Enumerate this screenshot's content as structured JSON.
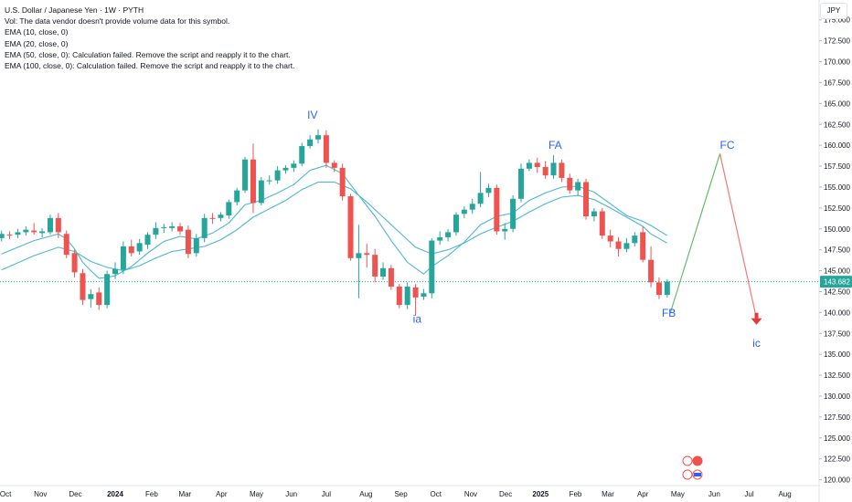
{
  "legend": {
    "title": "U.S. Dollar / Japanese Yen · 1W · PYTH",
    "vol": "Vol: The data vendor doesn't provide volume data for this symbol.",
    "ema10": "EMA (10, close, 0)",
    "ema20": "EMA (20, close, 0)",
    "ema50": "EMA (50, close, 0): Calculation failed. Remove the script and reapply it to the chart.",
    "ema100": "EMA (100, close, 0): Calculation failed. Remove the script and reapply it to the chart."
  },
  "currency": "JPY",
  "colors": {
    "up": "#26a69a",
    "down": "#ef5350",
    "ema": "#4db6d6",
    "label": "#2962ff",
    "projection": "#f07a7a",
    "proj_up": "#66bb6a",
    "price_line": "#26a69a"
  },
  "chart_data": {
    "type": "candlestick",
    "y_ticks": [
      "175.000",
      "172.500",
      "170.000",
      "167.500",
      "165.000",
      "162.500",
      "160.000",
      "157.500",
      "155.000",
      "152.500",
      "150.000",
      "147.500",
      "145.000",
      "142.500",
      "140.000",
      "137.500",
      "135.000",
      "132.500",
      "130.000",
      "127.500",
      "125.000",
      "122.500",
      "120.000"
    ],
    "ylim": [
      119.3,
      176.5
    ],
    "x_ticks": [
      {
        "label": "Oct",
        "week": -13.5,
        "bold": false
      },
      {
        "label": "Nov",
        "week": -9.2,
        "bold": false
      },
      {
        "label": "Dec",
        "week": -4.9,
        "bold": false
      },
      {
        "label": "2024",
        "week": 0,
        "bold": true
      },
      {
        "label": "Feb",
        "week": 4.5,
        "bold": false
      },
      {
        "label": "Mar",
        "week": 8.6,
        "bold": false
      },
      {
        "label": "Apr",
        "week": 13.1,
        "bold": false
      },
      {
        "label": "May",
        "week": 17.4,
        "bold": false
      },
      {
        "label": "Jun",
        "week": 21.7,
        "bold": false
      },
      {
        "label": "Jul",
        "week": 26.0,
        "bold": false
      },
      {
        "label": "Aug",
        "week": 30.9,
        "bold": false
      },
      {
        "label": "Sep",
        "week": 35.2,
        "bold": false
      },
      {
        "label": "Oct",
        "week": 39.5,
        "bold": false
      },
      {
        "label": "Nov",
        "week": 43.8,
        "bold": false
      },
      {
        "label": "Dec",
        "week": 48.1,
        "bold": false
      },
      {
        "label": "2025",
        "week": 52.4,
        "bold": true
      },
      {
        "label": "Feb",
        "week": 56.7,
        "bold": false
      },
      {
        "label": "Mar",
        "week": 60.7,
        "bold": false
      },
      {
        "label": "Apr",
        "week": 65.0,
        "bold": false
      },
      {
        "label": "May",
        "week": 69.3,
        "bold": false
      },
      {
        "label": "Jun",
        "week": 73.8,
        "bold": false
      },
      {
        "label": "Jul",
        "week": 78.1,
        "bold": false
      },
      {
        "label": "Aug",
        "week": 82.5,
        "bold": false
      }
    ],
    "candles": [
      {
        "w": -14,
        "o": 148.9,
        "c": 149.4,
        "h": 149.8,
        "l": 148.5
      },
      {
        "w": -13,
        "o": 149.3,
        "c": 149.2,
        "h": 149.7,
        "l": 148.8
      },
      {
        "w": -12,
        "o": 149.3,
        "c": 149.6,
        "h": 150.0,
        "l": 148.9
      },
      {
        "w": -11,
        "o": 149.6,
        "c": 149.9,
        "h": 150.3,
        "l": 149.2
      },
      {
        "w": -10,
        "o": 149.8,
        "c": 149.6,
        "h": 150.7,
        "l": 149.3
      },
      {
        "w": -9,
        "o": 149.5,
        "c": 149.7,
        "h": 150.1,
        "l": 149.0
      },
      {
        "w": -8,
        "o": 149.6,
        "c": 151.3,
        "h": 151.7,
        "l": 149.3
      },
      {
        "w": -7,
        "o": 151.3,
        "c": 149.6,
        "h": 151.9,
        "l": 148.9
      },
      {
        "w": -6,
        "o": 149.4,
        "c": 146.9,
        "h": 149.8,
        "l": 146.5
      },
      {
        "w": -5,
        "o": 147.1,
        "c": 144.8,
        "h": 147.5,
        "l": 144.2
      },
      {
        "w": -4,
        "o": 144.7,
        "c": 141.5,
        "h": 145.2,
        "l": 140.9
      },
      {
        "w": -3,
        "o": 141.6,
        "c": 142.2,
        "h": 142.8,
        "l": 140.6
      },
      {
        "w": -2,
        "o": 142.4,
        "c": 140.9,
        "h": 143.0,
        "l": 140.3
      },
      {
        "w": -1,
        "o": 140.9,
        "c": 144.6,
        "h": 145.0,
        "l": 140.5
      },
      {
        "w": 0,
        "o": 144.6,
        "c": 145.2,
        "h": 146.0,
        "l": 144.0
      },
      {
        "w": 1,
        "o": 145.1,
        "c": 147.9,
        "h": 148.5,
        "l": 144.6
      },
      {
        "w": 2,
        "o": 147.9,
        "c": 147.1,
        "h": 148.7,
        "l": 146.7
      },
      {
        "w": 3,
        "o": 147.3,
        "c": 148.3,
        "h": 148.8,
        "l": 146.9
      },
      {
        "w": 4,
        "o": 148.1,
        "c": 149.3,
        "h": 149.6,
        "l": 147.6
      },
      {
        "w": 5,
        "o": 149.3,
        "c": 150.1,
        "h": 150.8,
        "l": 148.8
      },
      {
        "w": 6,
        "o": 150.1,
        "c": 150.2,
        "h": 150.6,
        "l": 149.5
      },
      {
        "w": 7,
        "o": 150.1,
        "c": 150.3,
        "h": 150.8,
        "l": 149.7
      },
      {
        "w": 8,
        "o": 150.3,
        "c": 149.7,
        "h": 150.7,
        "l": 149.3
      },
      {
        "w": 9,
        "o": 149.9,
        "c": 147.0,
        "h": 150.4,
        "l": 146.5
      },
      {
        "w": 10,
        "o": 147.1,
        "c": 148.9,
        "h": 149.4,
        "l": 146.7
      },
      {
        "w": 11,
        "o": 148.9,
        "c": 151.3,
        "h": 151.8,
        "l": 148.4
      },
      {
        "w": 12,
        "o": 151.3,
        "c": 151.2,
        "h": 151.9,
        "l": 150.6
      },
      {
        "w": 13,
        "o": 151.3,
        "c": 151.7,
        "h": 152.0,
        "l": 150.9
      },
      {
        "w": 14,
        "o": 151.6,
        "c": 153.2,
        "h": 153.5,
        "l": 151.2
      },
      {
        "w": 15,
        "o": 153.2,
        "c": 154.6,
        "h": 154.9,
        "l": 152.8
      },
      {
        "w": 16,
        "o": 154.6,
        "c": 158.3,
        "h": 158.6,
        "l": 154.3
      },
      {
        "w": 17,
        "o": 158.3,
        "c": 153.1,
        "h": 160.2,
        "l": 151.9
      },
      {
        "w": 18,
        "o": 153.1,
        "c": 155.8,
        "h": 156.2,
        "l": 152.8
      },
      {
        "w": 19,
        "o": 155.8,
        "c": 155.8,
        "h": 156.4,
        "l": 155.3
      },
      {
        "w": 20,
        "o": 155.8,
        "c": 157.0,
        "h": 157.5,
        "l": 155.4
      },
      {
        "w": 21,
        "o": 157.0,
        "c": 157.3,
        "h": 157.6,
        "l": 156.6
      },
      {
        "w": 22,
        "o": 157.3,
        "c": 157.8,
        "h": 158.2,
        "l": 156.8
      },
      {
        "w": 23,
        "o": 157.8,
        "c": 159.9,
        "h": 160.3,
        "l": 157.5
      },
      {
        "w": 24,
        "o": 159.9,
        "c": 160.7,
        "h": 161.2,
        "l": 159.6
      },
      {
        "w": 25,
        "o": 160.7,
        "c": 161.2,
        "h": 161.9,
        "l": 160.2
      },
      {
        "w": 26,
        "o": 161.2,
        "c": 157.9,
        "h": 161.8,
        "l": 157.3
      },
      {
        "w": 27,
        "o": 157.9,
        "c": 157.3,
        "h": 158.2,
        "l": 156.8
      },
      {
        "w": 28,
        "o": 157.3,
        "c": 153.9,
        "h": 157.8,
        "l": 153.4
      },
      {
        "w": 29,
        "o": 153.9,
        "c": 146.5,
        "h": 154.2,
        "l": 146.2
      },
      {
        "w": 30,
        "o": 146.5,
        "c": 147.1,
        "h": 150.5,
        "l": 141.7
      },
      {
        "w": 31,
        "o": 147.1,
        "c": 146.9,
        "h": 148.2,
        "l": 145.4
      },
      {
        "w": 32,
        "o": 146.9,
        "c": 144.3,
        "h": 147.6,
        "l": 143.6
      },
      {
        "w": 33,
        "o": 144.3,
        "c": 145.3,
        "h": 146.0,
        "l": 143.9
      },
      {
        "w": 34,
        "o": 145.3,
        "c": 143.1,
        "h": 145.7,
        "l": 142.7
      },
      {
        "w": 35,
        "o": 143.1,
        "c": 140.9,
        "h": 143.4,
        "l": 140.5
      },
      {
        "w": 36,
        "o": 140.9,
        "c": 143.1,
        "h": 143.6,
        "l": 140.4
      },
      {
        "w": 37,
        "o": 143.0,
        "c": 141.8,
        "h": 143.4,
        "l": 139.6
      },
      {
        "w": 38,
        "o": 141.9,
        "c": 142.3,
        "h": 142.8,
        "l": 141.5
      },
      {
        "w": 39,
        "o": 142.3,
        "c": 148.6,
        "h": 148.9,
        "l": 141.7
      },
      {
        "w": 40,
        "o": 148.6,
        "c": 149.0,
        "h": 149.7,
        "l": 148.1
      },
      {
        "w": 41,
        "o": 149.0,
        "c": 149.6,
        "h": 150.0,
        "l": 148.5
      },
      {
        "w": 42,
        "o": 149.6,
        "c": 151.7,
        "h": 152.0,
        "l": 149.2
      },
      {
        "w": 43,
        "o": 151.8,
        "c": 152.3,
        "h": 152.7,
        "l": 151.3
      },
      {
        "w": 44,
        "o": 152.3,
        "c": 153.0,
        "h": 153.6,
        "l": 151.8
      },
      {
        "w": 45,
        "o": 153.0,
        "c": 154.3,
        "h": 156.8,
        "l": 152.6
      },
      {
        "w": 46,
        "o": 154.3,
        "c": 154.9,
        "h": 155.4,
        "l": 153.8
      },
      {
        "w": 47,
        "o": 154.9,
        "c": 149.7,
        "h": 155.3,
        "l": 149.3
      },
      {
        "w": 48,
        "o": 149.7,
        "c": 150.0,
        "h": 150.7,
        "l": 148.7
      },
      {
        "w": 49,
        "o": 150.0,
        "c": 153.6,
        "h": 154.0,
        "l": 149.6
      },
      {
        "w": 50,
        "o": 153.6,
        "c": 157.2,
        "h": 157.8,
        "l": 153.2
      },
      {
        "w": 51,
        "o": 157.2,
        "c": 157.9,
        "h": 158.3,
        "l": 156.9
      },
      {
        "w": 52,
        "o": 157.9,
        "c": 157.4,
        "h": 158.5,
        "l": 156.7
      },
      {
        "w": 53,
        "o": 157.4,
        "c": 156.4,
        "h": 158.1,
        "l": 156.0
      },
      {
        "w": 54,
        "o": 156.4,
        "c": 157.9,
        "h": 158.8,
        "l": 156.0
      },
      {
        "w": 55,
        "o": 157.9,
        "c": 156.1,
        "h": 158.3,
        "l": 155.6
      },
      {
        "w": 56,
        "o": 156.1,
        "c": 154.6,
        "h": 156.6,
        "l": 154.2
      },
      {
        "w": 57,
        "o": 154.6,
        "c": 155.6,
        "h": 156.0,
        "l": 154.0
      },
      {
        "w": 58,
        "o": 155.6,
        "c": 151.5,
        "h": 156.0,
        "l": 151.1
      },
      {
        "w": 59,
        "o": 151.5,
        "c": 152.1,
        "h": 152.5,
        "l": 150.9
      },
      {
        "w": 60,
        "o": 152.1,
        "c": 149.2,
        "h": 152.5,
        "l": 148.8
      },
      {
        "w": 61,
        "o": 149.2,
        "c": 148.5,
        "h": 149.9,
        "l": 147.8
      },
      {
        "w": 62,
        "o": 148.5,
        "c": 147.6,
        "h": 149.0,
        "l": 146.7
      },
      {
        "w": 63,
        "o": 147.6,
        "c": 148.3,
        "h": 148.9,
        "l": 147.2
      },
      {
        "w": 64,
        "o": 148.3,
        "c": 149.2,
        "h": 149.6,
        "l": 147.9
      },
      {
        "w": 65,
        "o": 149.6,
        "c": 146.3,
        "h": 150.3,
        "l": 146.0
      },
      {
        "w": 66,
        "o": 146.3,
        "c": 143.6,
        "h": 147.9,
        "l": 143.0
      },
      {
        "w": 67,
        "o": 143.6,
        "c": 142.1,
        "h": 144.2,
        "l": 141.6
      },
      {
        "w": 68,
        "o": 142.1,
        "c": 143.7,
        "h": 144.0,
        "l": 141.8
      }
    ],
    "ema_short": [
      [
        -14,
        147.0
      ],
      [
        -10,
        148.6
      ],
      [
        -7,
        149.4
      ],
      [
        -6,
        148.8
      ],
      [
        -5,
        147.6
      ],
      [
        -4,
        146.0
      ],
      [
        -3,
        145.0
      ],
      [
        -2,
        144.1
      ],
      [
        -1,
        144.2
      ],
      [
        0,
        144.4
      ],
      [
        2,
        145.5
      ],
      [
        4,
        147.1
      ],
      [
        6,
        148.5
      ],
      [
        8,
        149.1
      ],
      [
        10,
        148.8
      ],
      [
        12,
        149.5
      ],
      [
        14,
        150.7
      ],
      [
        16,
        152.9
      ],
      [
        18,
        153.4
      ],
      [
        20,
        154.3
      ],
      [
        22,
        155.3
      ],
      [
        24,
        157.0
      ],
      [
        26,
        157.6
      ],
      [
        28,
        156.6
      ],
      [
        30,
        154.0
      ],
      [
        32,
        151.5
      ],
      [
        34,
        148.6
      ],
      [
        36,
        146.0
      ],
      [
        38,
        144.6
      ],
      [
        39,
        145.5
      ],
      [
        41,
        146.8
      ],
      [
        43,
        148.4
      ],
      [
        45,
        150.5
      ],
      [
        47,
        151.5
      ],
      [
        49,
        151.9
      ],
      [
        51,
        153.4
      ],
      [
        53,
        154.3
      ],
      [
        55,
        155.0
      ],
      [
        57,
        155.1
      ],
      [
        59,
        154.4
      ],
      [
        61,
        153.0
      ],
      [
        63,
        151.6
      ],
      [
        65,
        150.9
      ],
      [
        66,
        150.4
      ],
      [
        68,
        149.2
      ]
    ],
    "ema_long": [
      [
        -14,
        145.1
      ],
      [
        -10,
        146.8
      ],
      [
        -7,
        147.8
      ],
      [
        -5,
        147.3
      ],
      [
        -3,
        146.1
      ],
      [
        -1,
        145.4
      ],
      [
        1,
        145.0
      ],
      [
        3,
        145.6
      ],
      [
        5,
        146.5
      ],
      [
        7,
        147.3
      ],
      [
        9,
        147.6
      ],
      [
        11,
        147.9
      ],
      [
        13,
        148.7
      ],
      [
        15,
        149.9
      ],
      [
        17,
        151.4
      ],
      [
        19,
        152.4
      ],
      [
        21,
        153.4
      ],
      [
        23,
        154.7
      ],
      [
        25,
        155.6
      ],
      [
        27,
        155.6
      ],
      [
        29,
        154.8
      ],
      [
        31,
        153.2
      ],
      [
        33,
        151.4
      ],
      [
        35,
        149.6
      ],
      [
        37,
        147.8
      ],
      [
        39,
        147.0
      ],
      [
        41,
        147.5
      ],
      [
        43,
        148.3
      ],
      [
        45,
        149.4
      ],
      [
        47,
        150.2
      ],
      [
        49,
        150.9
      ],
      [
        51,
        152.0
      ],
      [
        53,
        153.0
      ],
      [
        55,
        153.8
      ],
      [
        57,
        154.0
      ],
      [
        59,
        153.5
      ],
      [
        61,
        152.5
      ],
      [
        63,
        151.4
      ],
      [
        65,
        150.3
      ],
      [
        66,
        149.4
      ],
      [
        68,
        148.3
      ]
    ],
    "projection_up": [
      [
        68.4,
        140.0
      ],
      [
        74.5,
        159.0
      ]
    ],
    "projection_down": [
      [
        74.5,
        159.0
      ],
      [
        79.0,
        139.3
      ]
    ],
    "wave_labels": [
      {
        "text": "IV",
        "week": 24.3,
        "price": 163.2
      },
      {
        "text": "ia",
        "week": 37.2,
        "price": 138.8
      },
      {
        "text": "FA",
        "week": 54.2,
        "price": 159.6
      },
      {
        "text": "FB",
        "week": 68.2,
        "price": 139.5
      },
      {
        "text": "FC",
        "week": 75.4,
        "price": 159.6
      },
      {
        "text": "ic",
        "week": 79.0,
        "price": 135.9
      }
    ],
    "current_price": "143.682",
    "current_price_value": 143.682
  }
}
